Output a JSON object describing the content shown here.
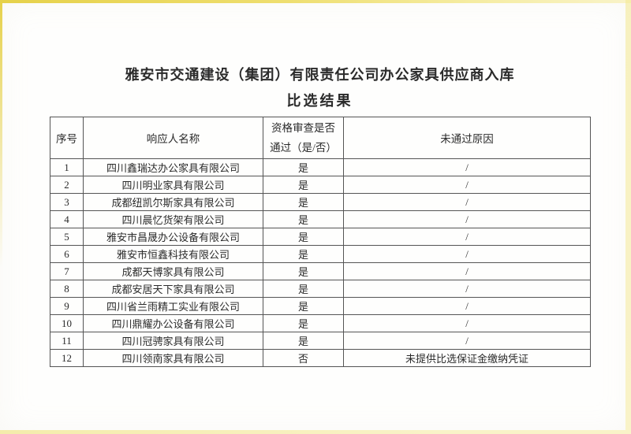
{
  "document": {
    "title_line1": "雅安市交通建设（集团）有限责任公司办公家具供应商入库",
    "title_line2": "比选结果"
  },
  "table": {
    "columns": {
      "no": "序号",
      "name": "响应人名称",
      "pass_line1": "资格审查是否",
      "pass_line2": "通过（是/否）",
      "reason": "未通过原因"
    },
    "rows": [
      {
        "no": "1",
        "name": "四川鑫瑞达办公家具有限公司",
        "pass": "是",
        "reason": "/"
      },
      {
        "no": "2",
        "name": "四川明业家具有限公司",
        "pass": "是",
        "reason": "/"
      },
      {
        "no": "3",
        "name": "成都纽凯尔斯家具有限公司",
        "pass": "是",
        "reason": "/"
      },
      {
        "no": "4",
        "name": "四川晨忆货架有限公司",
        "pass": "是",
        "reason": "/"
      },
      {
        "no": "5",
        "name": "雅安市昌晟办公设备有限公司",
        "pass": "是",
        "reason": "/"
      },
      {
        "no": "6",
        "name": "雅安市恒鑫科技有限公司",
        "pass": "是",
        "reason": "/"
      },
      {
        "no": "7",
        "name": "成都天博家具有限公司",
        "pass": "是",
        "reason": "/"
      },
      {
        "no": "8",
        "name": "成都安居天下家具有限公司",
        "pass": "是",
        "reason": "/"
      },
      {
        "no": "9",
        "name": "四川省兰雨精工实业有限公司",
        "pass": "是",
        "reason": "/"
      },
      {
        "no": "10",
        "name": "四川鼎耀办公设备有限公司",
        "pass": "是",
        "reason": "/"
      },
      {
        "no": "11",
        "name": "四川冠骋家具有限公司",
        "pass": "是",
        "reason": "/"
      },
      {
        "no": "12",
        "name": "四川领南家具有限公司",
        "pass": "否",
        "reason": "未提供比选保证金缴纳凭证"
      }
    ]
  },
  "colors": {
    "paper": "#fefefd",
    "ink": "#2b2b2b",
    "table_border": "#555555",
    "scan_edge_gold": "#e6d14a",
    "scan_edge_pale": "#f9f3c8"
  }
}
